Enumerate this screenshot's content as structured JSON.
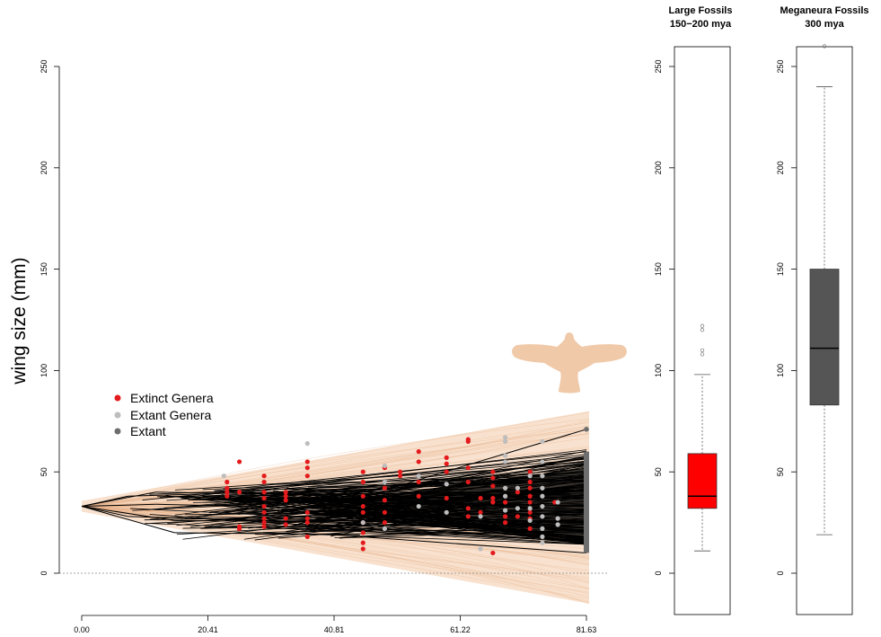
{
  "chart_data": [
    {
      "type": "line",
      "title": "",
      "xlabel": "",
      "ylabel": "wing size (mm)",
      "xlim": [
        0,
        81.63
      ],
      "ylim": [
        -15,
        250
      ],
      "x_ticks": [
        "0.00",
        "20.41",
        "40.81",
        "61.22",
        "81.63"
      ],
      "y_ticks": [
        "0",
        "50",
        "100",
        "150",
        "200",
        "250"
      ],
      "reference_line_y": 0,
      "root": {
        "x": 0,
        "y": 33
      },
      "envelope": {
        "upper_end": 80,
        "lower_end": -15,
        "color": "#f2c9a6"
      },
      "tip_range": {
        "min": 10,
        "max": 71
      },
      "legend": {
        "position": "left",
        "entries": [
          {
            "label": "Extinct Genera",
            "color": "#e41a1c"
          },
          {
            "label": "Extant Genera",
            "color": "#bdbdbd"
          },
          {
            "label": "Extant",
            "color": "#6e6e6e"
          }
        ]
      },
      "series": [
        {
          "name": "Extinct Genera",
          "color": "#e41a1c",
          "points": [
            [
              23.5,
              45
            ],
            [
              23.5,
              42
            ],
            [
              23.5,
              40
            ],
            [
              23.5,
              38
            ],
            [
              25.5,
              55
            ],
            [
              25.5,
              40
            ],
            [
              25.5,
              23
            ],
            [
              25.5,
              22
            ],
            [
              29.5,
              48
            ],
            [
              29.5,
              45
            ],
            [
              29.5,
              40
            ],
            [
              29.5,
              37
            ],
            [
              29.5,
              33
            ],
            [
              29.5,
              30
            ],
            [
              29.5,
              27
            ],
            [
              29.5,
              25
            ],
            [
              29.5,
              23
            ],
            [
              33.0,
              40
            ],
            [
              33.0,
              38
            ],
            [
              33.0,
              36
            ],
            [
              33.0,
              27
            ],
            [
              33.0,
              24
            ],
            [
              36.5,
              55
            ],
            [
              36.5,
              52
            ],
            [
              36.5,
              48
            ],
            [
              36.5,
              30
            ],
            [
              36.5,
              27
            ],
            [
              36.5,
              25
            ],
            [
              36.5,
              18
            ],
            [
              45.5,
              50
            ],
            [
              45.5,
              45
            ],
            [
              45.5,
              38
            ],
            [
              45.5,
              33
            ],
            [
              45.5,
              30
            ],
            [
              45.5,
              25
            ],
            [
              45.5,
              20
            ],
            [
              45.5,
              15
            ],
            [
              45.5,
              12
            ],
            [
              49.0,
              52
            ],
            [
              49.0,
              42
            ],
            [
              49.0,
              36
            ],
            [
              49.0,
              30
            ],
            [
              49.0,
              25
            ],
            [
              51.5,
              50
            ],
            [
              51.5,
              48
            ],
            [
              54.5,
              60
            ],
            [
              54.5,
              55
            ],
            [
              54.5,
              45
            ],
            [
              54.5,
              38
            ],
            [
              59.0,
              57
            ],
            [
              59.0,
              54
            ],
            [
              59.0,
              50
            ],
            [
              59.0,
              37
            ],
            [
              62.5,
              66
            ],
            [
              62.5,
              65
            ],
            [
              62.5,
              52
            ],
            [
              62.5,
              45
            ],
            [
              62.5,
              32
            ],
            [
              62.5,
              28
            ],
            [
              64.5,
              37
            ],
            [
              64.5,
              30
            ],
            [
              66.5,
              50
            ],
            [
              66.5,
              47
            ],
            [
              66.5,
              43
            ],
            [
              66.5,
              37
            ],
            [
              66.5,
              35
            ],
            [
              66.5,
              10
            ],
            [
              68.5,
              35
            ],
            [
              68.5,
              28
            ],
            [
              68.5,
              25
            ],
            [
              70.5,
              40
            ],
            [
              70.5,
              28
            ],
            [
              72.5,
              50
            ],
            [
              72.5,
              45
            ],
            [
              72.5,
              42
            ],
            [
              72.5,
              38
            ],
            [
              72.5,
              35
            ],
            [
              72.5,
              30
            ],
            [
              72.5,
              27
            ],
            [
              72.5,
              22
            ],
            [
              76.5,
              35
            ]
          ]
        },
        {
          "name": "Extant Genera",
          "color": "#bdbdbd",
          "points": [
            [
              23.0,
              48
            ],
            [
              36.5,
              64
            ],
            [
              49.0,
              53
            ],
            [
              49.0,
              45
            ],
            [
              49.0,
              22
            ],
            [
              45.5,
              25
            ],
            [
              54.5,
              48
            ],
            [
              54.5,
              33
            ],
            [
              59.0,
              44
            ],
            [
              59.0,
              30
            ],
            [
              64.5,
              12
            ],
            [
              64.5,
              28
            ],
            [
              68.5,
              67
            ],
            [
              68.5,
              65
            ],
            [
              68.5,
              58
            ],
            [
              68.5,
              55
            ],
            [
              68.5,
              42
            ],
            [
              68.5,
              38
            ],
            [
              68.5,
              31
            ],
            [
              70.5,
              42
            ],
            [
              70.5,
              32
            ],
            [
              72.5,
              48
            ],
            [
              72.5,
              32
            ],
            [
              72.5,
              26
            ],
            [
              74.5,
              65
            ],
            [
              74.5,
              55
            ],
            [
              74.5,
              48
            ],
            [
              74.5,
              42
            ],
            [
              74.5,
              38
            ],
            [
              74.5,
              33
            ],
            [
              74.5,
              28
            ],
            [
              74.5,
              22
            ],
            [
              74.5,
              18
            ],
            [
              74.5,
              15
            ],
            [
              77.0,
              35
            ],
            [
              77.0,
              27
            ],
            [
              77.0,
              24
            ]
          ]
        }
      ]
    },
    {
      "type": "box",
      "title": "Large Fossils\n150−200 mya",
      "title_lines": [
        "Large Fossils",
        "150−200 mya"
      ],
      "ylim": [
        -15,
        250
      ],
      "y_ticks": [
        "0",
        "50",
        "100",
        "150",
        "200",
        "250"
      ],
      "color": "#ff0000",
      "whisker_low": 11,
      "q1": 32,
      "median": 38,
      "q3": 59,
      "whisker_high": 98,
      "outliers": [
        108,
        110,
        120,
        122
      ]
    },
    {
      "type": "box",
      "title": "Meganeura Fossils\n300 mya",
      "title_lines": [
        "Meganeura Fossils",
        "300 mya"
      ],
      "ylim": [
        -15,
        250
      ],
      "y_ticks": [
        "0",
        "50",
        "100",
        "150",
        "200",
        "250"
      ],
      "color": "#555555",
      "whisker_low": 19,
      "q1": 83,
      "median": 111,
      "q3": 150,
      "whisker_high": 240,
      "outliers": [
        260
      ]
    }
  ],
  "silhouette": {
    "icon": "bird-silhouette-icon",
    "color": "#f0c9a8"
  }
}
